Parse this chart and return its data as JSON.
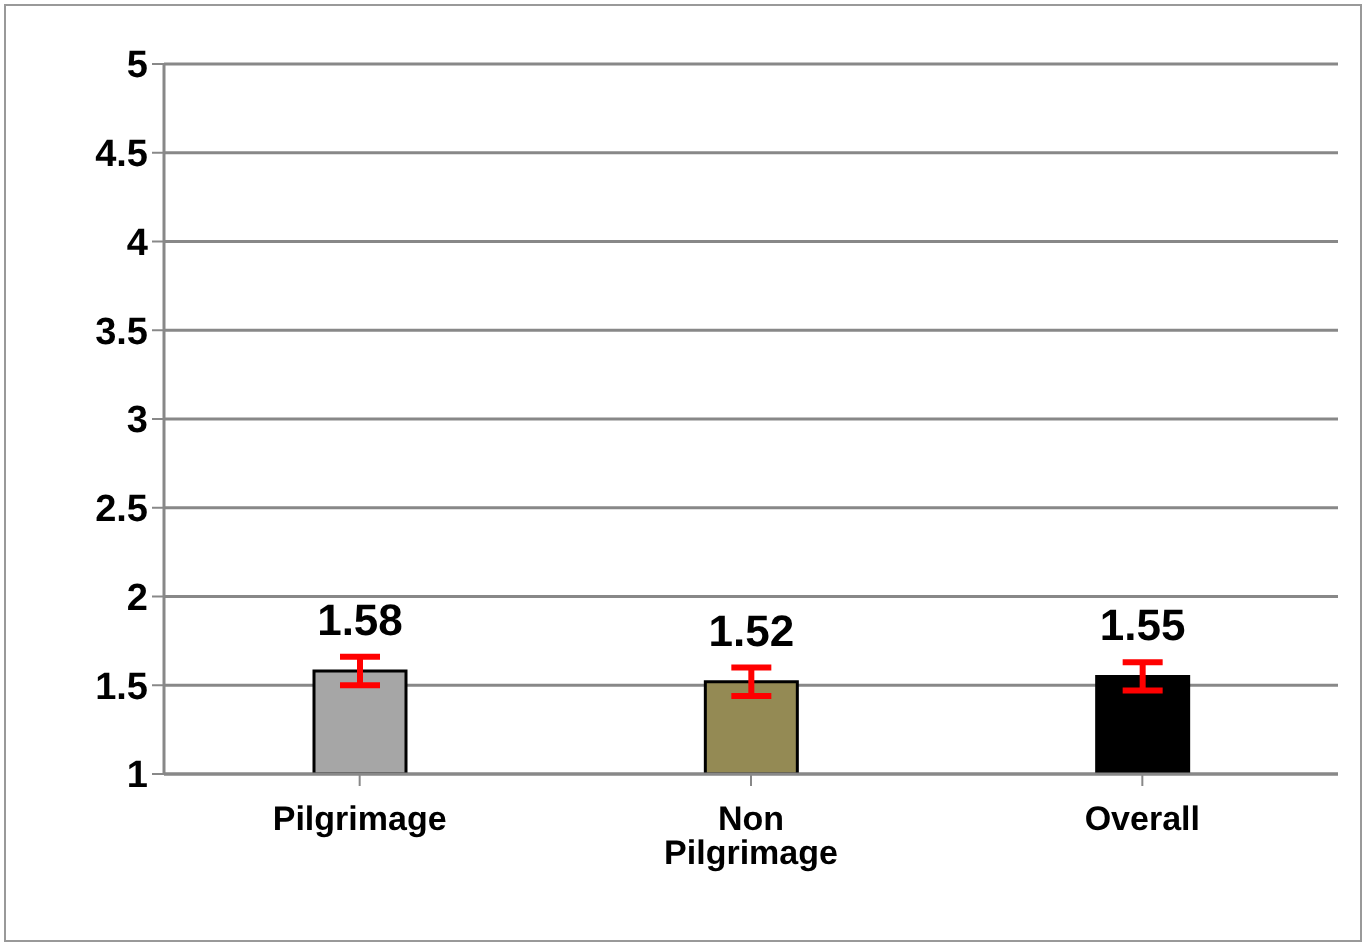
{
  "chart_data": {
    "type": "bar",
    "categories": [
      "Pilgrimage",
      "Non Pilgrimage",
      "Overall"
    ],
    "values": [
      1.58,
      1.52,
      1.55
    ],
    "colors": [
      "#a6a6a6",
      "#948a54",
      "#000000"
    ],
    "errors": [
      0.08,
      0.08,
      0.08
    ],
    "ylim": [
      1,
      5
    ],
    "yticks": [
      1,
      1.5,
      2,
      2.5,
      3,
      3.5,
      4,
      4.5,
      5
    ],
    "grid": "y",
    "data_labels": true
  }
}
